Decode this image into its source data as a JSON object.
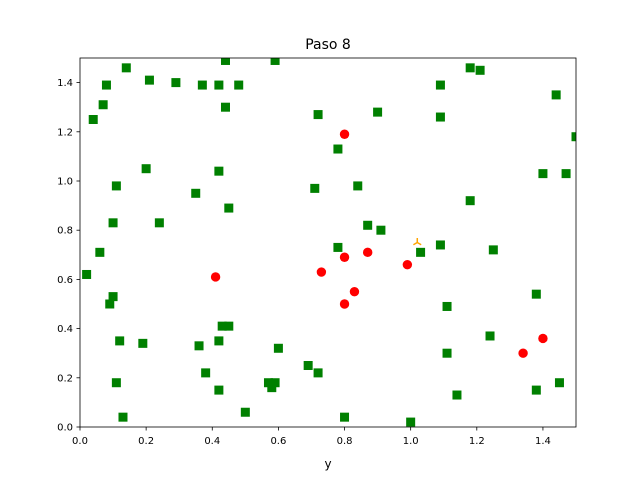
{
  "chart_data": {
    "type": "scatter",
    "title": "Paso 8",
    "xlabel": "y",
    "ylabel": "",
    "xlim": [
      0,
      1.5
    ],
    "ylim": [
      0,
      1.5
    ],
    "grid": false,
    "x_ticks": [
      "0.0",
      "0.2",
      "0.4",
      "0.6",
      "0.8",
      "1.0",
      "1.2",
      "1.4"
    ],
    "y_ticks": [
      "0.0",
      "0.2",
      "0.4",
      "0.6",
      "0.8",
      "1.0",
      "1.2",
      "1.4"
    ],
    "series": [
      {
        "marker": "square",
        "color": "#008000",
        "points": [
          [
            0.14,
            1.46
          ],
          [
            0.21,
            1.41
          ],
          [
            0.29,
            1.4
          ],
          [
            0.08,
            1.39
          ],
          [
            0.37,
            1.39
          ],
          [
            0.42,
            1.39
          ],
          [
            0.44,
            1.49
          ],
          [
            0.48,
            1.39
          ],
          [
            0.59,
            1.49
          ],
          [
            0.04,
            1.25
          ],
          [
            0.07,
            1.31
          ],
          [
            0.44,
            1.3
          ],
          [
            0.72,
            1.27
          ],
          [
            0.9,
            1.28
          ],
          [
            1.09,
            1.39
          ],
          [
            1.09,
            1.26
          ],
          [
            1.18,
            1.46
          ],
          [
            1.21,
            1.45
          ],
          [
            1.44,
            1.35
          ],
          [
            0.78,
            1.13
          ],
          [
            1.5,
            1.18
          ],
          [
            0.11,
            0.98
          ],
          [
            0.2,
            1.05
          ],
          [
            0.35,
            0.95
          ],
          [
            0.42,
            1.04
          ],
          [
            0.45,
            0.89
          ],
          [
            0.71,
            0.97
          ],
          [
            0.84,
            0.98
          ],
          [
            1.18,
            0.92
          ],
          [
            1.4,
            1.03
          ],
          [
            1.47,
            1.03
          ],
          [
            0.1,
            0.83
          ],
          [
            0.24,
            0.83
          ],
          [
            0.06,
            0.71
          ],
          [
            0.78,
            0.73
          ],
          [
            0.87,
            0.82
          ],
          [
            0.91,
            0.8
          ],
          [
            1.03,
            0.71
          ],
          [
            1.09,
            0.74
          ],
          [
            1.25,
            0.72
          ],
          [
            0.02,
            0.62
          ],
          [
            0.1,
            0.53
          ],
          [
            0.09,
            0.5
          ],
          [
            1.11,
            0.49
          ],
          [
            1.38,
            0.54
          ],
          [
            0.12,
            0.35
          ],
          [
            0.19,
            0.34
          ],
          [
            0.36,
            0.33
          ],
          [
            0.42,
            0.35
          ],
          [
            0.43,
            0.41
          ],
          [
            0.45,
            0.41
          ],
          [
            0.6,
            0.32
          ],
          [
            1.11,
            0.3
          ],
          [
            1.24,
            0.37
          ],
          [
            0.11,
            0.18
          ],
          [
            0.38,
            0.22
          ],
          [
            0.42,
            0.15
          ],
          [
            0.57,
            0.18
          ],
          [
            0.58,
            0.16
          ],
          [
            0.59,
            0.18
          ],
          [
            0.69,
            0.25
          ],
          [
            0.72,
            0.22
          ],
          [
            1.14,
            0.13
          ],
          [
            1.38,
            0.15
          ],
          [
            1.45,
            0.18
          ],
          [
            0.13,
            0.04
          ],
          [
            0.5,
            0.06
          ],
          [
            0.8,
            0.04
          ],
          [
            1.0,
            0.02
          ]
        ]
      },
      {
        "marker": "circle",
        "color": "#ff0000",
        "points": [
          [
            0.8,
            1.19
          ],
          [
            0.41,
            0.61
          ],
          [
            0.73,
            0.63
          ],
          [
            0.8,
            0.69
          ],
          [
            0.87,
            0.71
          ],
          [
            0.99,
            0.66
          ],
          [
            0.83,
            0.55
          ],
          [
            0.8,
            0.5
          ],
          [
            1.34,
            0.3
          ],
          [
            1.4,
            0.36
          ]
        ]
      },
      {
        "marker": "tri",
        "color": "#ffa500",
        "points": [
          [
            1.02,
            0.75
          ]
        ]
      }
    ]
  }
}
